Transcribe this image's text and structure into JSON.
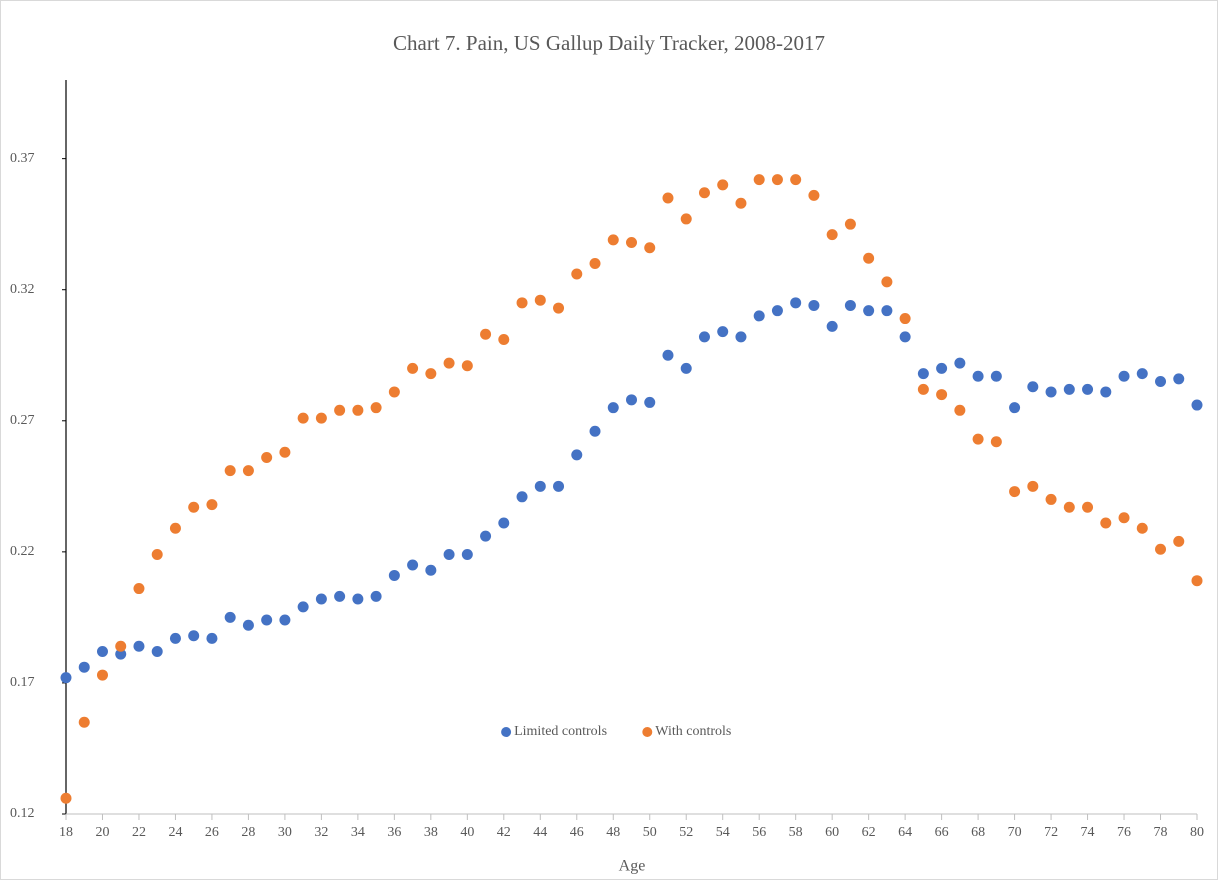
{
  "chart_data": {
    "type": "scatter",
    "title": "Chart 7.  Pain, US Gallup Daily Tracker, 2008-2017",
    "x_label": "Age",
    "x": [
      18,
      19,
      20,
      21,
      22,
      23,
      24,
      25,
      26,
      27,
      28,
      29,
      30,
      31,
      32,
      33,
      34,
      35,
      36,
      37,
      38,
      39,
      40,
      41,
      42,
      43,
      44,
      45,
      46,
      47,
      48,
      49,
      50,
      51,
      52,
      53,
      54,
      55,
      56,
      57,
      58,
      59,
      60,
      61,
      62,
      63,
      64,
      65,
      66,
      67,
      68,
      69,
      70,
      71,
      72,
      73,
      74,
      75,
      76,
      77,
      78,
      79,
      80
    ],
    "series": [
      {
        "name": "Limited controls",
        "color": "#4472c4",
        "values": [
          0.172,
          0.176,
          0.182,
          0.181,
          0.184,
          0.182,
          0.187,
          0.188,
          0.187,
          0.195,
          0.192,
          0.194,
          0.194,
          0.199,
          0.202,
          0.203,
          0.202,
          0.203,
          0.211,
          0.215,
          0.213,
          0.219,
          0.219,
          0.226,
          0.231,
          0.241,
          0.245,
          0.245,
          0.257,
          0.266,
          0.275,
          0.278,
          0.277,
          0.295,
          0.29,
          0.302,
          0.304,
          0.302,
          0.31,
          0.312,
          0.315,
          0.314,
          0.306,
          0.314,
          0.312,
          0.312,
          0.302,
          0.288,
          0.29,
          0.292,
          0.287,
          0.287,
          0.275,
          0.283,
          0.281,
          0.282,
          0.282,
          0.281,
          0.287,
          0.288,
          0.285,
          0.286,
          0.276
        ]
      },
      {
        "name": "With controls",
        "color": "#ed7d31",
        "values": [
          0.126,
          0.155,
          0.173,
          0.184,
          0.206,
          0.219,
          0.229,
          0.237,
          0.238,
          0.251,
          0.251,
          0.256,
          0.258,
          0.271,
          0.271,
          0.274,
          0.274,
          0.275,
          0.281,
          0.29,
          0.288,
          0.292,
          0.291,
          0.303,
          0.301,
          0.315,
          0.316,
          0.313,
          0.326,
          0.33,
          0.339,
          0.338,
          0.336,
          0.355,
          0.347,
          0.357,
          0.36,
          0.353,
          0.362,
          0.362,
          0.362,
          0.356,
          0.341,
          0.345,
          0.332,
          0.323,
          0.309,
          0.282,
          0.28,
          0.274,
          0.263,
          0.262,
          0.243,
          0.245,
          0.24,
          0.237,
          0.237,
          0.231,
          0.233,
          0.229,
          0.221,
          0.224,
          0.209
        ]
      }
    ],
    "xlim": [
      18,
      80
    ],
    "xticks": [
      18,
      20,
      22,
      24,
      26,
      28,
      30,
      32,
      34,
      36,
      38,
      40,
      42,
      44,
      46,
      48,
      50,
      52,
      54,
      56,
      58,
      60,
      62,
      64,
      66,
      68,
      70,
      72,
      74,
      76,
      78,
      80
    ],
    "ylim": [
      0.12,
      0.4
    ],
    "yticks": [
      0.12,
      0.17,
      0.22,
      0.27,
      0.32,
      0.37
    ],
    "grid": false,
    "legend": "lower center"
  }
}
